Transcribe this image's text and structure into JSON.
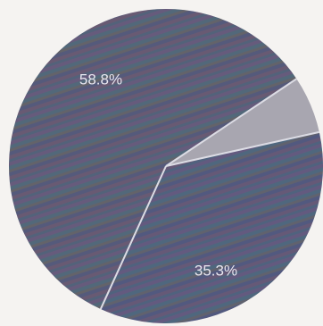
{
  "chart_data": {
    "type": "pie",
    "slices": [
      {
        "value": 58.8,
        "label": "58.8%",
        "color": "#5a5a74"
      },
      {
        "value": 35.3,
        "label": "35.3%",
        "color": "#56597a"
      },
      {
        "value": 5.9,
        "label": "",
        "color": "#a8a6b0"
      }
    ],
    "divider_color": "#dcdce4",
    "background": "#f5f3f1"
  }
}
